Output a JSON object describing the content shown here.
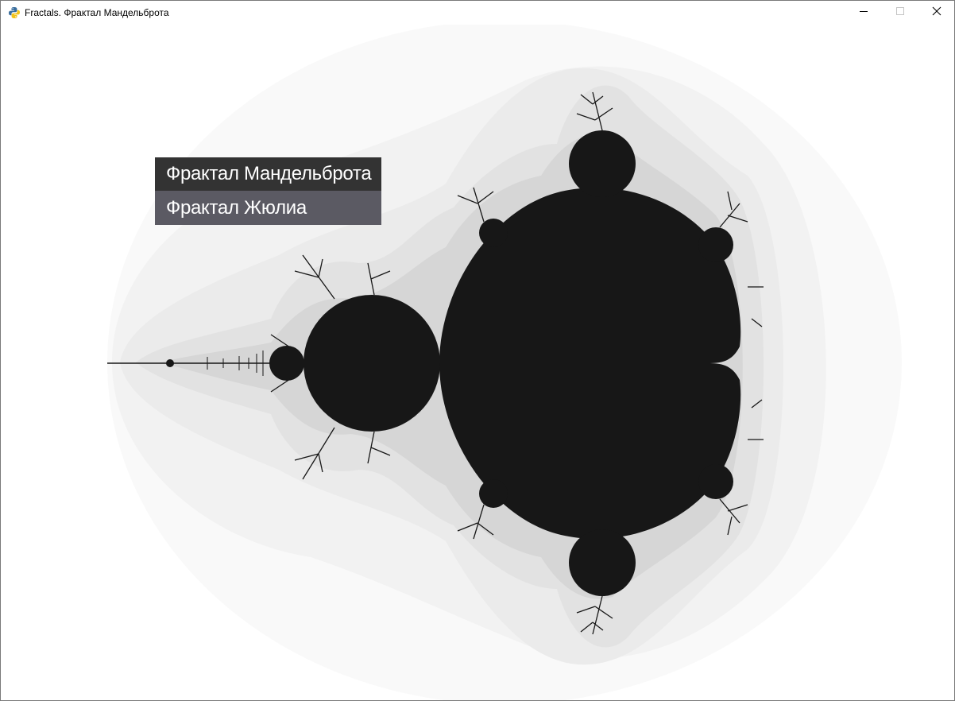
{
  "window": {
    "title": "Fractals. Фрактал Мандельброта",
    "app_icon": "python-logo-icon",
    "controls": {
      "minimize": "minimize-icon",
      "maximize": "maximize-icon",
      "close": "close-icon"
    }
  },
  "menu": {
    "items": [
      {
        "label": "Фрактал Мандельброта",
        "state": "selected"
      },
      {
        "label": "Фрактал Жюлиа",
        "state": "normal"
      }
    ]
  },
  "fractal": {
    "name": "mandelbrot-set",
    "set_color": "#171717",
    "background_color": "#ffffff",
    "halo_colors": [
      "#f9f9f9",
      "#f2f2f2",
      "#ebebeb",
      "#e2e2e2",
      "#d6d6d6"
    ]
  }
}
